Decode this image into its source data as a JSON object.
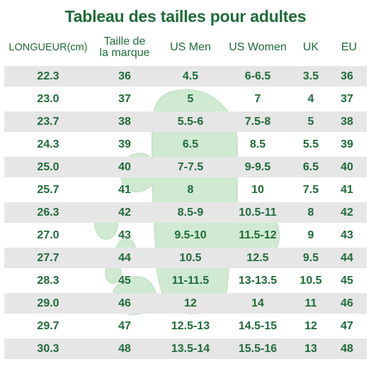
{
  "title": "Tableau des tailles pour adultes",
  "columns": [
    {
      "label": "LONGUEUR(cm)"
    },
    {
      "label_line1": "Taille de",
      "label_line2": "la marque"
    },
    {
      "label": "US Men"
    },
    {
      "label": "US Women"
    },
    {
      "label": "UK"
    },
    {
      "label": "EU"
    }
  ],
  "rows": [
    [
      "22.3",
      "36",
      "4.5",
      "6-6.5",
      "3.5",
      "36"
    ],
    [
      "23.0",
      "37",
      "5",
      "7",
      "4",
      "37"
    ],
    [
      "23.7",
      "38",
      "5.5-6",
      "7.5-8",
      "5",
      "38"
    ],
    [
      "24.3",
      "39",
      "6.5",
      "8.5",
      "5.5",
      "39"
    ],
    [
      "25.0",
      "40",
      "7-7.5",
      "9-9.5",
      "6.5",
      "40"
    ],
    [
      "25.7",
      "41",
      "8",
      "10",
      "7.5",
      "41"
    ],
    [
      "26.3",
      "42",
      "8.5-9",
      "10.5-11",
      "8",
      "42"
    ],
    [
      "27.0",
      "43",
      "9.5-10",
      "11.5-12",
      "9",
      "43"
    ],
    [
      "27.7",
      "44",
      "10.5",
      "12.5",
      "9.5",
      "44"
    ],
    [
      "28.3",
      "45",
      "11-11.5",
      "13-13.5",
      "10.5",
      "45"
    ],
    [
      "29.0",
      "46",
      "12",
      "14",
      "11",
      "46"
    ],
    [
      "29.7",
      "47",
      "12.5-13",
      "14.5-15",
      "12",
      "47"
    ],
    [
      "30.3",
      "48",
      "13.5-14",
      "15.5-16",
      "13",
      "48"
    ]
  ],
  "colors": {
    "text": "#1f6b3a",
    "stripe": "#e6e6e6",
    "watermark": "#a8d9ad"
  }
}
